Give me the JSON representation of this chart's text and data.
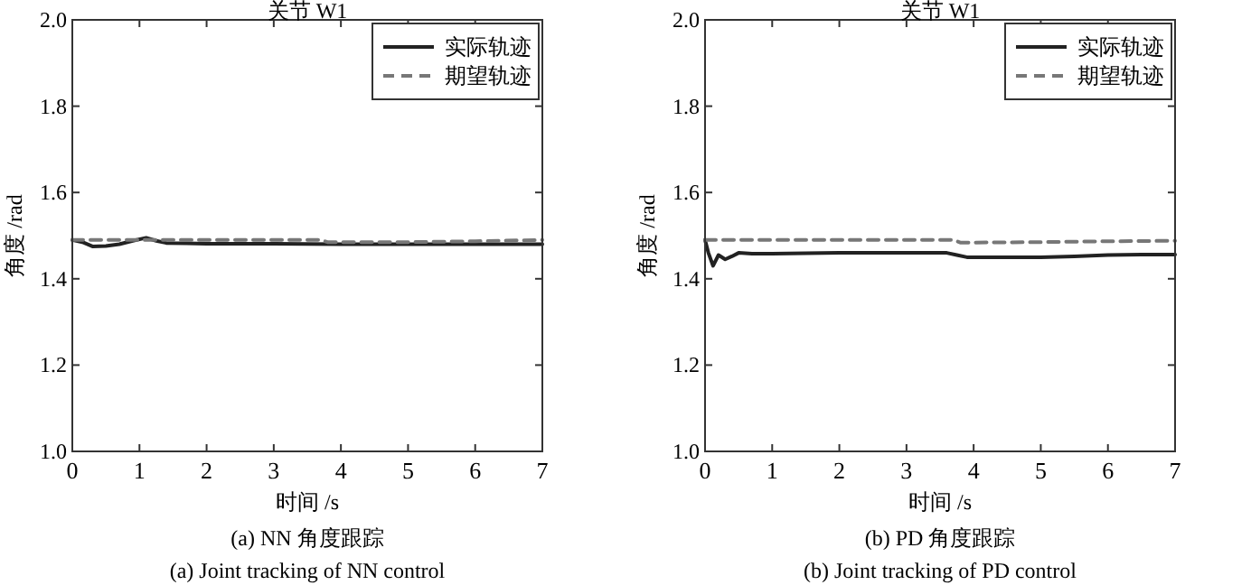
{
  "chart_data": [
    {
      "type": "line",
      "title": "关节 W1",
      "xlabel": "时间 /s",
      "ylabel": "角度 /rad",
      "xlim": [
        0,
        7
      ],
      "ylim": [
        1.0,
        2.0
      ],
      "xticks": [
        0,
        1,
        2,
        3,
        4,
        5,
        6,
        7
      ],
      "yticks": [
        {
          "value": 1.0,
          "label": "1.0"
        },
        {
          "value": 1.2,
          "label": "1.2"
        },
        {
          "value": 1.4,
          "label": "1.4"
        },
        {
          "value": 1.6,
          "label": "1.6"
        },
        {
          "value": 1.8,
          "label": "1.8"
        },
        {
          "value": 2.0,
          "label": "2.0"
        }
      ],
      "grid": false,
      "legend": "top right",
      "annotations": [
        "(a) NN 角度跟踪",
        "(a) Joint tracking of NN control"
      ],
      "series": [
        {
          "name": "实际轨迹",
          "color": "#222222",
          "line_style": "solid",
          "x": [
            0,
            0.15,
            0.3,
            0.5,
            0.7,
            0.9,
            1.1,
            1.25,
            1.4,
            1.7,
            2,
            3,
            4,
            5,
            6,
            7
          ],
          "values": [
            1.49,
            1.485,
            1.475,
            1.476,
            1.48,
            1.488,
            1.495,
            1.488,
            1.483,
            1.482,
            1.481,
            1.481,
            1.48,
            1.48,
            1.48,
            1.48
          ]
        },
        {
          "name": "期望轨迹",
          "color": "#777777",
          "line_style": "dashed",
          "x": [
            0,
            1,
            2,
            3,
            3.7,
            3.8,
            4,
            5,
            6,
            7
          ],
          "values": [
            1.49,
            1.49,
            1.49,
            1.49,
            1.49,
            1.485,
            1.485,
            1.485,
            1.487,
            1.49
          ]
        }
      ]
    },
    {
      "type": "line",
      "title": "关节 W1",
      "xlabel": "时间 /s",
      "ylabel": "角度 /rad",
      "xlim": [
        0,
        7
      ],
      "ylim": [
        1.0,
        2.0
      ],
      "xticks": [
        0,
        1,
        2,
        3,
        4,
        5,
        6,
        7
      ],
      "yticks": [
        {
          "value": 1.0,
          "label": "1.0"
        },
        {
          "value": 1.2,
          "label": "1.2"
        },
        {
          "value": 1.4,
          "label": "1.4"
        },
        {
          "value": 1.6,
          "label": "1.6"
        },
        {
          "value": 1.8,
          "label": "1.8"
        },
        {
          "value": 2.0,
          "label": "2.0"
        }
      ],
      "grid": false,
      "legend": "top right",
      "annotations": [
        "(b) PD 角度跟踪",
        "(b) Joint tracking of PD control"
      ],
      "series": [
        {
          "name": "实际轨迹",
          "color": "#222222",
          "line_style": "solid",
          "x": [
            0,
            0.05,
            0.12,
            0.2,
            0.3,
            0.4,
            0.5,
            0.7,
            1,
            2,
            3,
            3.6,
            3.75,
            3.9,
            4.5,
            5,
            5.5,
            6,
            6.5,
            7
          ],
          "values": [
            1.49,
            1.46,
            1.43,
            1.455,
            1.445,
            1.452,
            1.46,
            1.458,
            1.458,
            1.46,
            1.46,
            1.46,
            1.455,
            1.45,
            1.45,
            1.45,
            1.452,
            1.455,
            1.456,
            1.456
          ]
        },
        {
          "name": "期望轨迹",
          "color": "#777777",
          "line_style": "dashed",
          "x": [
            0,
            1,
            2,
            3,
            3.7,
            3.8,
            4,
            5,
            6,
            7
          ],
          "values": [
            1.49,
            1.49,
            1.49,
            1.49,
            1.49,
            1.484,
            1.484,
            1.485,
            1.487,
            1.488
          ]
        }
      ]
    }
  ]
}
